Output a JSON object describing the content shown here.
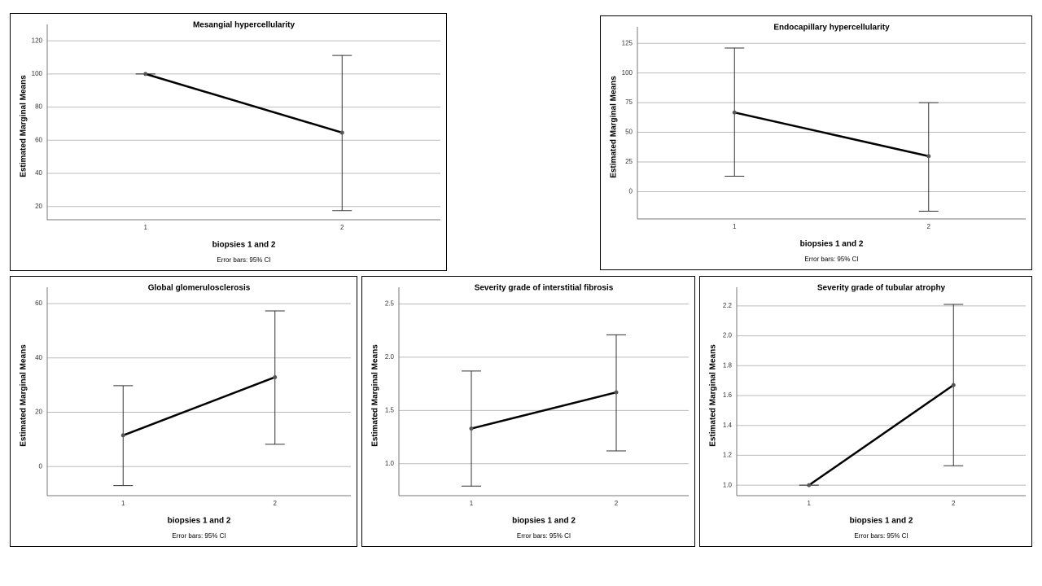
{
  "chart_data": [
    {
      "type": "line",
      "title": "Mesangial hypercellularity",
      "y_label": "Estimated Marginal Means",
      "x_label": "biopsies 1 and 2",
      "note": "Error bars: 95% CI",
      "categories": [
        "1",
        "2"
      ],
      "series": [
        {
          "color": "#000000",
          "values": [
            100,
            64.6
          ],
          "lower": [
            100,
            17.5
          ],
          "upper": [
            100,
            111.2
          ]
        }
      ],
      "ylim": [
        12,
        125
      ],
      "yticks": [
        20,
        40,
        60,
        80,
        100,
        120
      ],
      "grid": true
    },
    {
      "type": "line",
      "title": "Endocapillary hypercellularity",
      "y_label": "Estimated Marginal Means",
      "x_label": "biopsies 1 and 2",
      "note": "Error bars: 95% CI",
      "categories": [
        "1",
        "2"
      ],
      "series": [
        {
          "color": "#000000",
          "values": [
            66.7,
            29.9
          ],
          "lower": [
            13,
            -16.5
          ],
          "upper": [
            121,
            75
          ]
        }
      ],
      "ylim": [
        -23,
        132
      ],
      "yticks": [
        0,
        25,
        50,
        75,
        100,
        125
      ],
      "grid": true
    },
    {
      "type": "line",
      "title": "Global glomerulosclerosis",
      "y_label": "Estimated Marginal Means",
      "x_label": "biopsies 1 and 2",
      "note": "Error bars: 95% CI",
      "categories": [
        "1",
        "2"
      ],
      "series": [
        {
          "color": "#000000",
          "values": [
            11.5,
            32.9
          ],
          "lower": [
            -7,
            8.2
          ],
          "upper": [
            29.8,
            57.3
          ]
        }
      ],
      "ylim": [
        -10.7,
        63
      ],
      "yticks": [
        0,
        20,
        40,
        60
      ],
      "grid": true
    },
    {
      "type": "line",
      "title": "Severity grade of interstitial fibrosis",
      "y_label": "Estimated Marginal Means",
      "x_label": "biopsies 1 and 2",
      "note": "Error bars: 95% CI",
      "categories": [
        "1",
        "2"
      ],
      "series": [
        {
          "color": "#000000",
          "values": [
            1.33,
            1.67
          ],
          "lower": [
            0.79,
            1.12
          ],
          "upper": [
            1.87,
            2.21
          ]
        }
      ],
      "ylim": [
        0.7,
        2.58
      ],
      "yticks": [
        {
          "value": 1,
          "label": "1.0"
        },
        1.5,
        {
          "value": 2,
          "label": "2.0"
        },
        2.5
      ],
      "grid": true
    },
    {
      "type": "line",
      "title": "Severity grade of tubular atrophy",
      "y_label": "Estimated Marginal Means",
      "x_label": "biopsies 1 and 2",
      "note": "Error bars: 95% CI",
      "categories": [
        "1",
        "2"
      ],
      "series": [
        {
          "color": "#000000",
          "values": [
            1,
            1.67
          ],
          "lower": [
            1,
            1.13
          ],
          "upper": [
            1,
            2.21
          ]
        }
      ],
      "ylim": [
        0.93,
        2.27
      ],
      "yticks": [
        {
          "value": 1,
          "label": "1.0"
        },
        1.2,
        1.4,
        1.6,
        1.8,
        {
          "value": 2,
          "label": "2.0"
        },
        2.2
      ],
      "grid": true
    }
  ]
}
